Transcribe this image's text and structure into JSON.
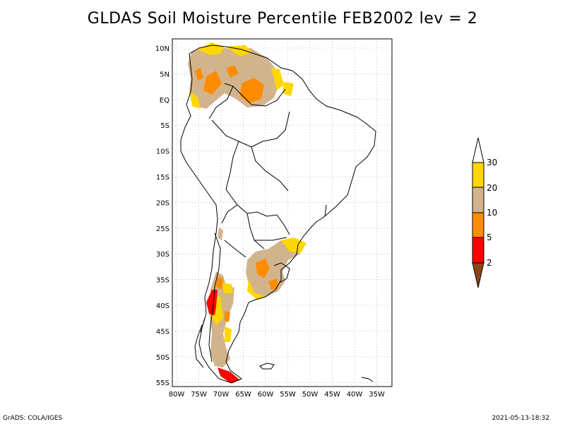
{
  "title": "GLDAS Soil Moisture Percentile FEB2002 lev = 2",
  "axes": {
    "lon_labels": [
      "80W",
      "75W",
      "70W",
      "65W",
      "60W",
      "55W",
      "50W",
      "45W",
      "40W",
      "35W"
    ],
    "lat_labels": [
      "10N",
      "5N",
      "EQ",
      "5S",
      "10S",
      "15S",
      "20S",
      "25S",
      "30S",
      "35S",
      "40S",
      "45S",
      "50S",
      "55S"
    ]
  },
  "colorbar": {
    "labels": [
      "30",
      "20",
      "10",
      "5",
      "2"
    ],
    "colors": {
      "above_30": "#ffffff",
      "20_30": "#ffd700",
      "10_20": "#d2b48c",
      "5_10": "#ff8c00",
      "2_5": "#ff0000",
      "below_2": "#8b4513"
    }
  },
  "footer": {
    "left": "GrADS: COLA/IGES",
    "right": "2021-05-13-18:32"
  }
}
